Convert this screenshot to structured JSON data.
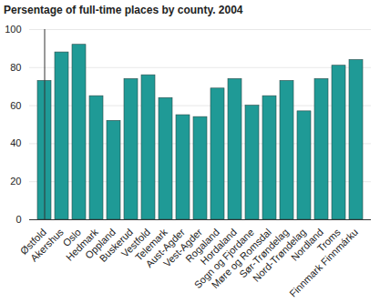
{
  "chart_data": {
    "type": "bar",
    "title": "Persentage of full-time places by county. 2004",
    "categories": [
      "Østfold",
      "Akershus",
      "Oslo",
      "Hedmark",
      "Oppland",
      "Buskerud",
      "Vestfold",
      "Telemark",
      "Aust-Agder",
      "Vest-Agder",
      "Rogaland",
      "Hordaland",
      "Sogn og Fjordane",
      "Møre og Romsdal",
      "Sør-Trøndelag",
      "Nord-Trøndelag",
      "Nordland",
      "Troms",
      "Finnmark Finnmárku"
    ],
    "values": [
      73,
      88,
      92,
      65,
      52,
      74,
      76,
      64,
      55,
      54,
      69,
      74,
      60,
      65,
      73,
      57,
      74,
      81,
      84
    ],
    "color": "#1f9a96",
    "ylim": [
      0,
      100
    ],
    "yticks": [
      0,
      20,
      40,
      60,
      80,
      100
    ],
    "grid": true
  }
}
